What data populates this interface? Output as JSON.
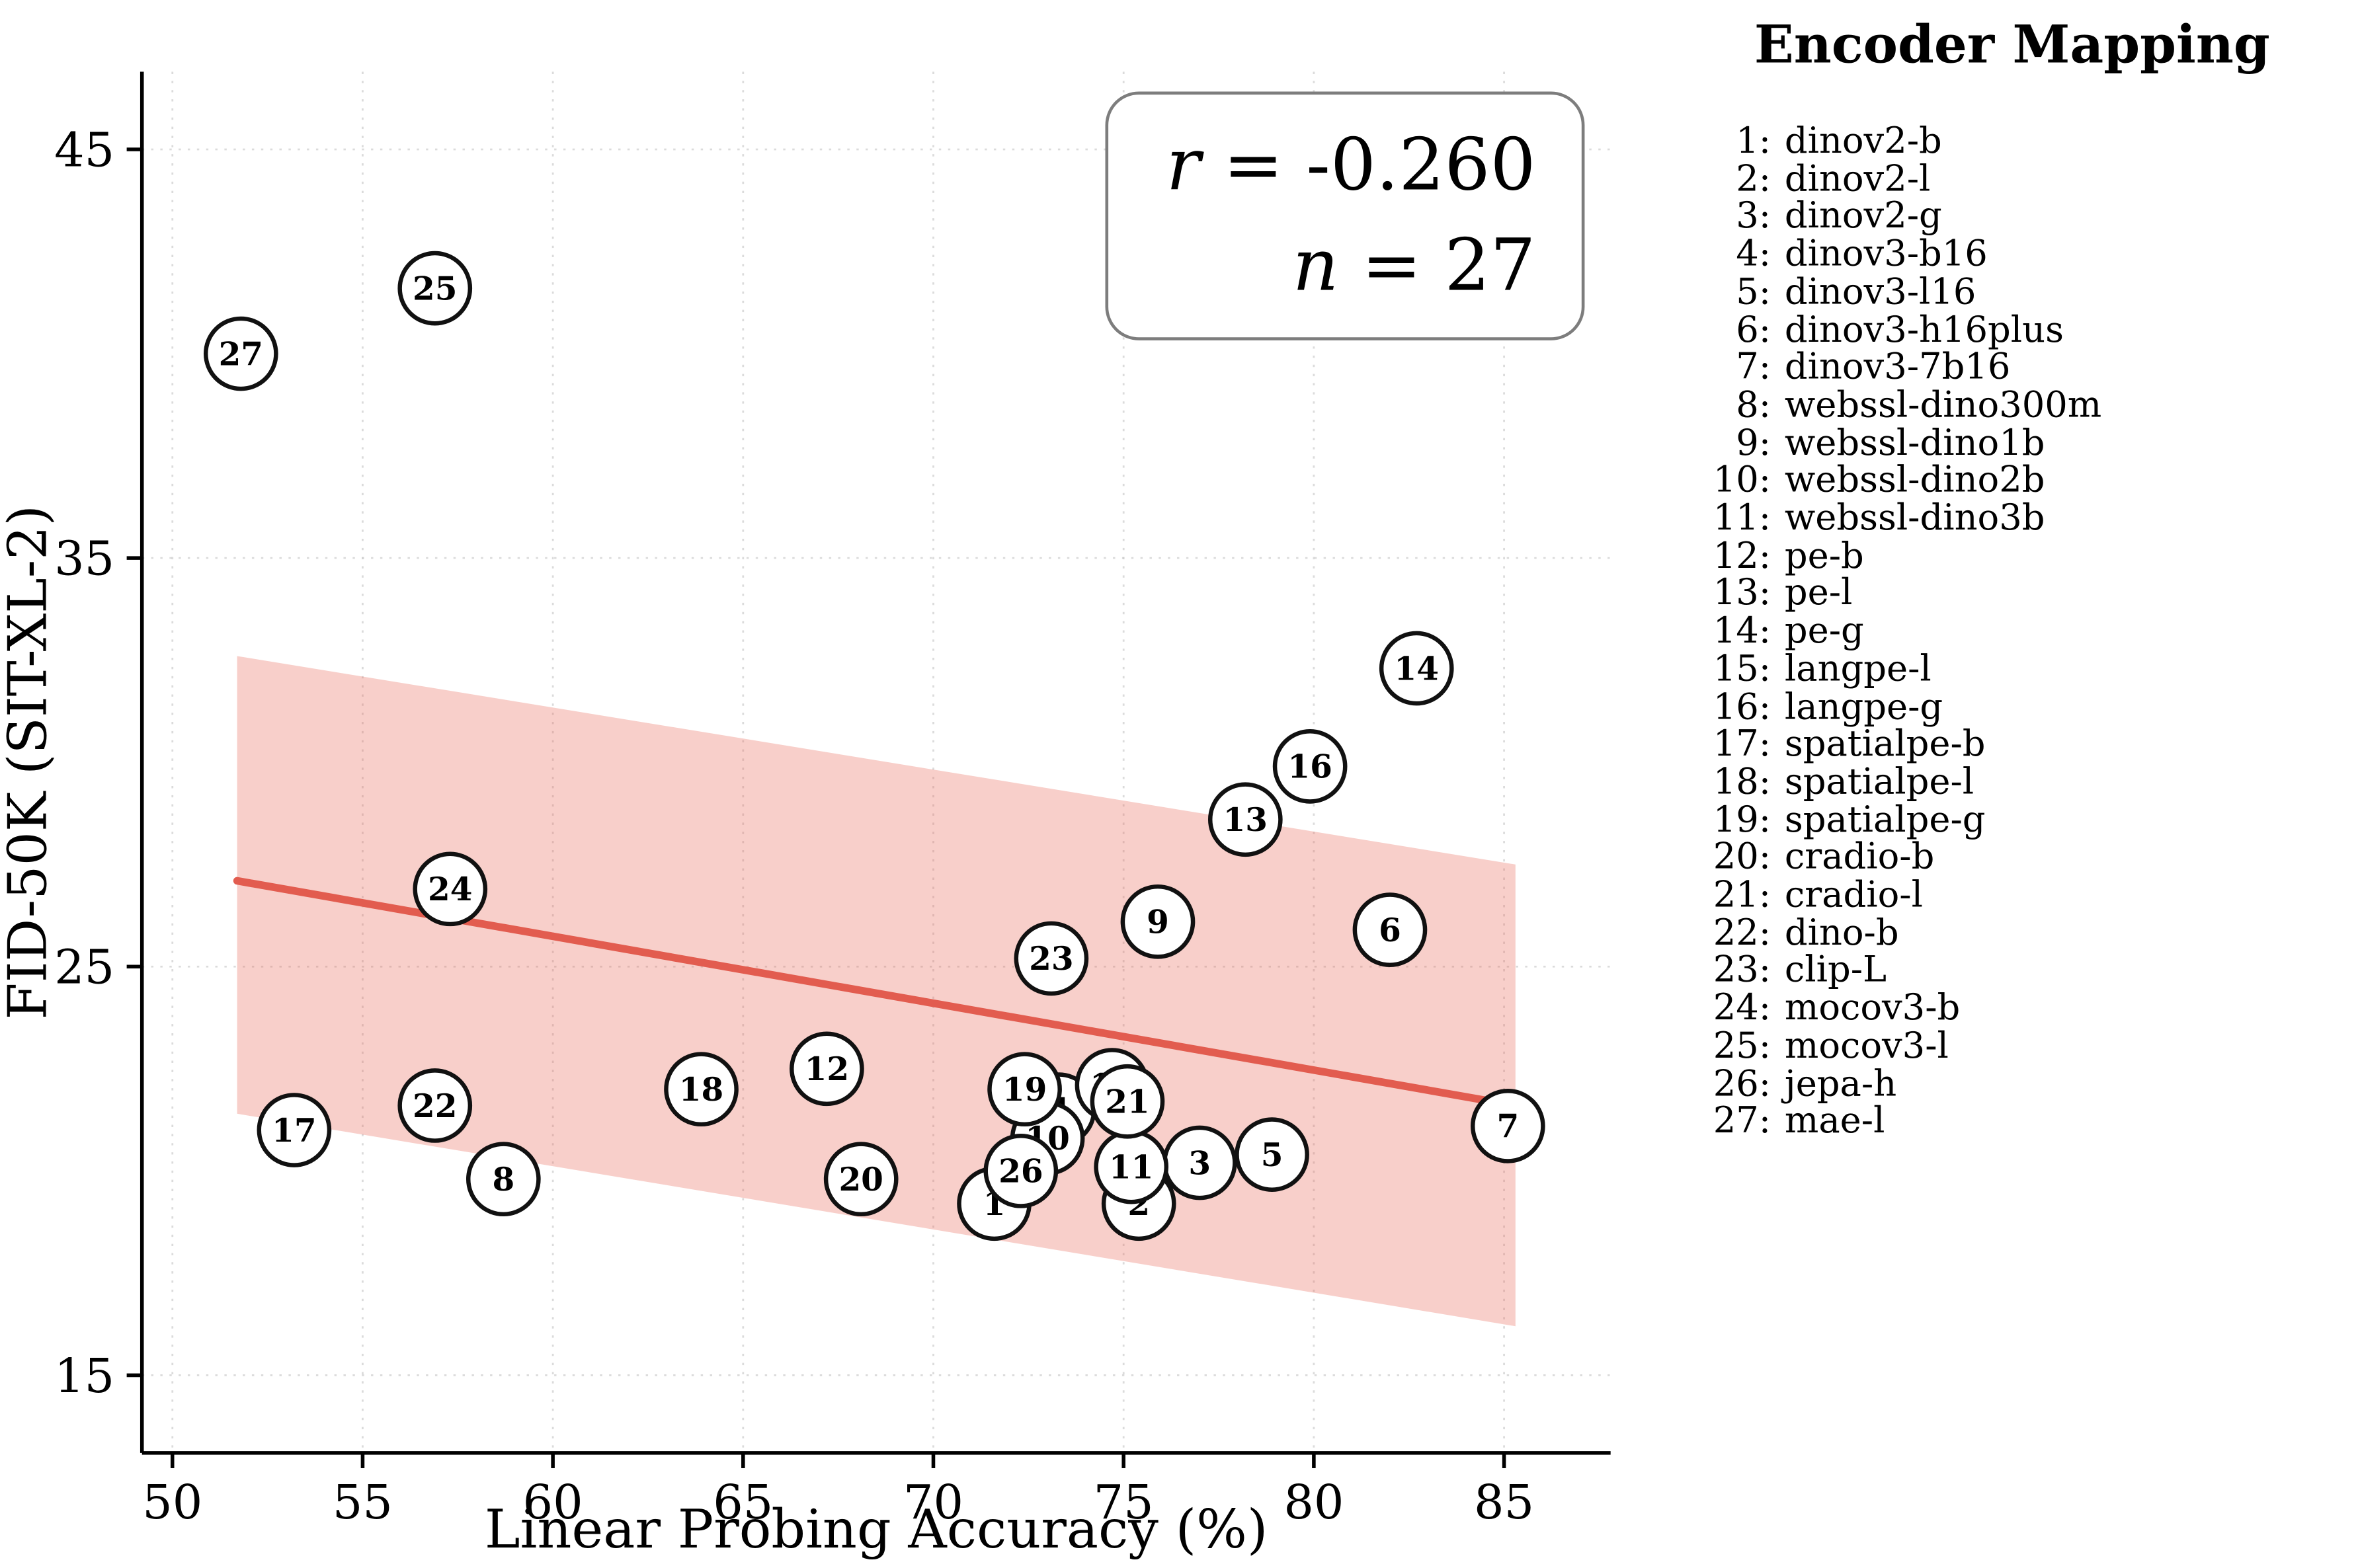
{
  "legend": {
    "title": "Encoder Mapping"
  },
  "annotation": {
    "r_var": "r",
    "r_rest": " = -0.260",
    "n_var": "n",
    "n_rest": " = 27"
  },
  "chart_data": {
    "type": "scatter",
    "title": "",
    "xlabel": "Linear Probing Accuracy (%)",
    "ylabel": "FID-50K (SIT-XL-2)",
    "xlim": [
      49.2,
      87.8
    ],
    "ylim": [
      13.1,
      46.9
    ],
    "xticks": [
      50,
      55,
      60,
      65,
      70,
      75,
      80,
      85
    ],
    "yticks": [
      15,
      25,
      35,
      45
    ],
    "grid": true,
    "legend_position": "right",
    "stats": {
      "r": -0.26,
      "n": 27
    },
    "marker_style": {
      "radius": 23,
      "fill": "#ffffff",
      "stroke": "#111111",
      "stroke_width": 2.8
    },
    "points": [
      {
        "id": 1,
        "label": "dinov2-b",
        "x": 71.6,
        "y": 19.2
      },
      {
        "id": 2,
        "label": "dinov2-l",
        "x": 75.4,
        "y": 19.2
      },
      {
        "id": 3,
        "label": "dinov2-g",
        "x": 77.0,
        "y": 20.2
      },
      {
        "id": 4,
        "label": "dinov3-b16",
        "x": 73.3,
        "y": 21.5
      },
      {
        "id": 5,
        "label": "dinov3-l16",
        "x": 78.9,
        "y": 20.4
      },
      {
        "id": 6,
        "label": "dinov3-h16plus",
        "x": 82.0,
        "y": 25.9
      },
      {
        "id": 7,
        "label": "dinov3-7b16",
        "x": 85.1,
        "y": 21.1
      },
      {
        "id": 8,
        "label": "webssl-dino300m",
        "x": 58.7,
        "y": 19.8
      },
      {
        "id": 9,
        "label": "webssl-dino1b",
        "x": 75.9,
        "y": 26.1
      },
      {
        "id": 10,
        "label": "webssl-dino2b",
        "x": 73.0,
        "y": 20.8
      },
      {
        "id": 11,
        "label": "webssl-dino3b",
        "x": 75.2,
        "y": 20.1
      },
      {
        "id": 12,
        "label": "pe-b",
        "x": 67.2,
        "y": 22.5
      },
      {
        "id": 13,
        "label": "pe-l",
        "x": 78.2,
        "y": 28.6
      },
      {
        "id": 14,
        "label": "pe-g",
        "x": 82.7,
        "y": 32.3
      },
      {
        "id": 15,
        "label": "langpe-l",
        "x": 74.7,
        "y": 22.1
      },
      {
        "id": 16,
        "label": "langpe-g",
        "x": 79.9,
        "y": 29.9
      },
      {
        "id": 17,
        "label": "spatialpe-b",
        "x": 53.2,
        "y": 21.0
      },
      {
        "id": 18,
        "label": "spatialpe-l",
        "x": 63.9,
        "y": 22.0
      },
      {
        "id": 19,
        "label": "spatialpe-g",
        "x": 72.4,
        "y": 22.0
      },
      {
        "id": 20,
        "label": "cradio-b",
        "x": 68.1,
        "y": 19.8
      },
      {
        "id": 21,
        "label": "cradio-l",
        "x": 75.1,
        "y": 21.7
      },
      {
        "id": 22,
        "label": "dino-b",
        "x": 56.9,
        "y": 21.6
      },
      {
        "id": 23,
        "label": "clip-L",
        "x": 73.1,
        "y": 25.2
      },
      {
        "id": 24,
        "label": "mocov3-b",
        "x": 57.3,
        "y": 26.9
      },
      {
        "id": 25,
        "label": "mocov3-l",
        "x": 56.9,
        "y": 41.6
      },
      {
        "id": 26,
        "label": "jepa-h",
        "x": 72.3,
        "y": 20.0
      },
      {
        "id": 27,
        "label": "mae-l",
        "x": 51.8,
        "y": 40.0
      }
    ],
    "regression": {
      "x": [
        51.7,
        85.3
      ],
      "y": [
        27.1,
        21.6
      ],
      "color": "#e25c4f",
      "width": 5
    },
    "band": {
      "x": [
        51.7,
        85.3
      ],
      "upper": [
        32.6,
        27.5
      ],
      "lower": [
        21.4,
        16.2
      ],
      "color": "#e8604e",
      "opacity": 0.3
    }
  }
}
